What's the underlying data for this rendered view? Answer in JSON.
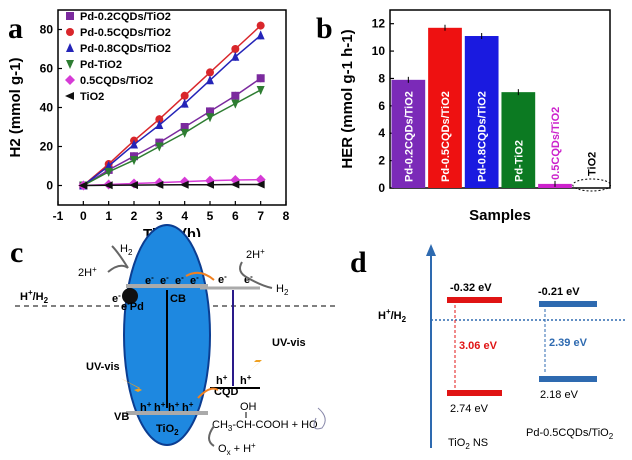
{
  "chart_data": [
    {
      "panel": "a",
      "type": "line",
      "xlabel": "Time (h)",
      "ylabel": "H2 (mmol g-1)",
      "xlim": [
        -1,
        8
      ],
      "ylim": [
        -10,
        90
      ],
      "xticks": [
        "-1",
        "0",
        "1",
        "2",
        "3",
        "4",
        "5",
        "6",
        "7",
        "8"
      ],
      "yticks": [
        "0",
        "20",
        "40",
        "60",
        "80"
      ],
      "x": [
        0,
        1,
        2,
        3,
        4,
        5,
        6,
        7
      ],
      "series": [
        {
          "name": "Pd-0.2CQDs/TiO2",
          "color": "#7b2a9e",
          "marker": "square",
          "values": [
            0,
            8,
            15,
            22,
            30,
            38,
            46,
            55
          ]
        },
        {
          "name": "Pd-0.5CQDs/TiO2",
          "color": "#d9262b",
          "marker": "circle",
          "values": [
            0,
            11,
            23,
            34,
            46,
            58,
            70,
            82
          ]
        },
        {
          "name": "Pd-0.8CQDs/TiO2",
          "color": "#2424b8",
          "marker": "triangle-up",
          "values": [
            0,
            10,
            21,
            31,
            42,
            54,
            66,
            77
          ]
        },
        {
          "name": "Pd-TiO2",
          "color": "#2e7d32",
          "marker": "triangle-down",
          "values": [
            0,
            7,
            13,
            20,
            27,
            35,
            42,
            49
          ]
        },
        {
          "name": "0.5CQDs/TiO2",
          "color": "#d63bd6",
          "marker": "diamond",
          "values": [
            0,
            0.5,
            1,
            1.5,
            2,
            2.5,
            2.8,
            3
          ]
        },
        {
          "name": "TiO2",
          "color": "#111111",
          "marker": "triangle-left",
          "values": [
            0,
            0.1,
            0.2,
            0.3,
            0.4,
            0.4,
            0.5,
            0.5
          ]
        }
      ]
    },
    {
      "panel": "b",
      "type": "bar",
      "xlabel": "Samples",
      "ylabel": "HER (mmol g-1 h-1)",
      "ylim": [
        0,
        13
      ],
      "yticks": [
        "0",
        "2",
        "4",
        "6",
        "8",
        "10",
        "12"
      ],
      "categories": [
        "Pd-0.2CQDs/TiO2",
        "Pd-0.5CQDs/TiO2",
        "Pd-0.8CQDs/TiO2",
        "Pd-TiO2",
        "0.5CQDs/TiO2",
        "TiO2"
      ],
      "values": [
        7.9,
        11.7,
        11.1,
        7.0,
        0.3,
        0.05
      ],
      "colors": [
        "#7b2ab8",
        "#ee1111",
        "#1a1ae0",
        "#0c7a22",
        "#cc22cc",
        "#ffffff"
      ]
    }
  ],
  "panel_c": {
    "letter": "c",
    "h2_top": "H",
    "sub2": "2",
    "two_h_left": "2H",
    "plus": "+",
    "e_minus": "e",
    "minus": "-",
    "pd": "Pd",
    "cb": "CB",
    "vb": "VB",
    "h_plus": "h",
    "tio2": "TiO",
    "h_ref": "H",
    "h2_ref": "/H",
    "uvvis": "UV-vis",
    "cqd": "CQD",
    "oh": "OH",
    "lactic": "CH",
    "lactic_sub": "3",
    "lactic_rest": "-CH-COOH + H",
    "water_sub": "2",
    "water_o": "O",
    "ox": "O",
    "ox_sub": "x",
    "ox_rest": " + H"
  },
  "panel_d": {
    "letter": "d",
    "ref_label": "H",
    "ref_label_rest": "/H",
    "tio2_cb": "-0.32 eV",
    "tio2_gap": "3.06 eV",
    "tio2_vb": "2.74 eV",
    "tio2_name": "TiO",
    "tio2_name_rest": " NS",
    "pd_cb": "-0.21 eV",
    "pd_gap": "2.39 eV",
    "pd_vb": "2.18 eV",
    "pd_name": "Pd-0.5CQDs/TiO",
    "colors": {
      "tio2": "#e01414",
      "pd": "#2e6ab0",
      "ref": "#2e6ab0",
      "axis": "#2e6ab0"
    }
  }
}
